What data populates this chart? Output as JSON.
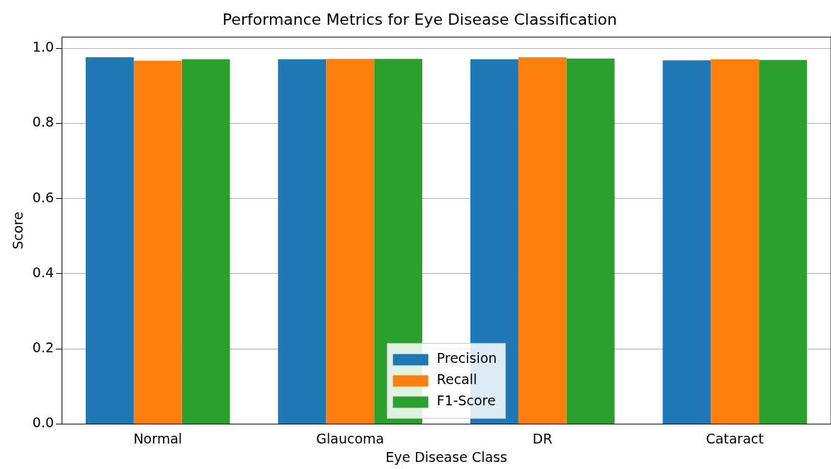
{
  "chart_data": {
    "type": "bar",
    "title": "Performance Metrics for Eye Disease Classification",
    "xlabel": "Eye Disease Class",
    "ylabel": "Score",
    "categories": [
      "Normal",
      "Glaucoma",
      "DR",
      "Cataract"
    ],
    "series": [
      {
        "name": "Precision",
        "color": "#1f77b4",
        "values": [
          0.976,
          0.971,
          0.971,
          0.968
        ]
      },
      {
        "name": "Recall",
        "color": "#ff7f0e",
        "values": [
          0.967,
          0.972,
          0.976,
          0.971
        ]
      },
      {
        "name": "F1-Score",
        "color": "#2ca02c",
        "values": [
          0.971,
          0.972,
          0.973,
          0.969
        ]
      }
    ],
    "ylim": [
      0,
      1.03
    ],
    "yticks": [
      {
        "value": 0,
        "label": "0.0"
      },
      {
        "value": 0.2,
        "label": "0.2"
      },
      {
        "value": 0.4,
        "label": "0.4"
      },
      {
        "value": 0.6,
        "label": "0.6"
      },
      {
        "value": 0.8,
        "label": "0.8"
      },
      {
        "value": 1,
        "label": "1.0"
      }
    ],
    "grid": "y",
    "legend": "bottom"
  }
}
